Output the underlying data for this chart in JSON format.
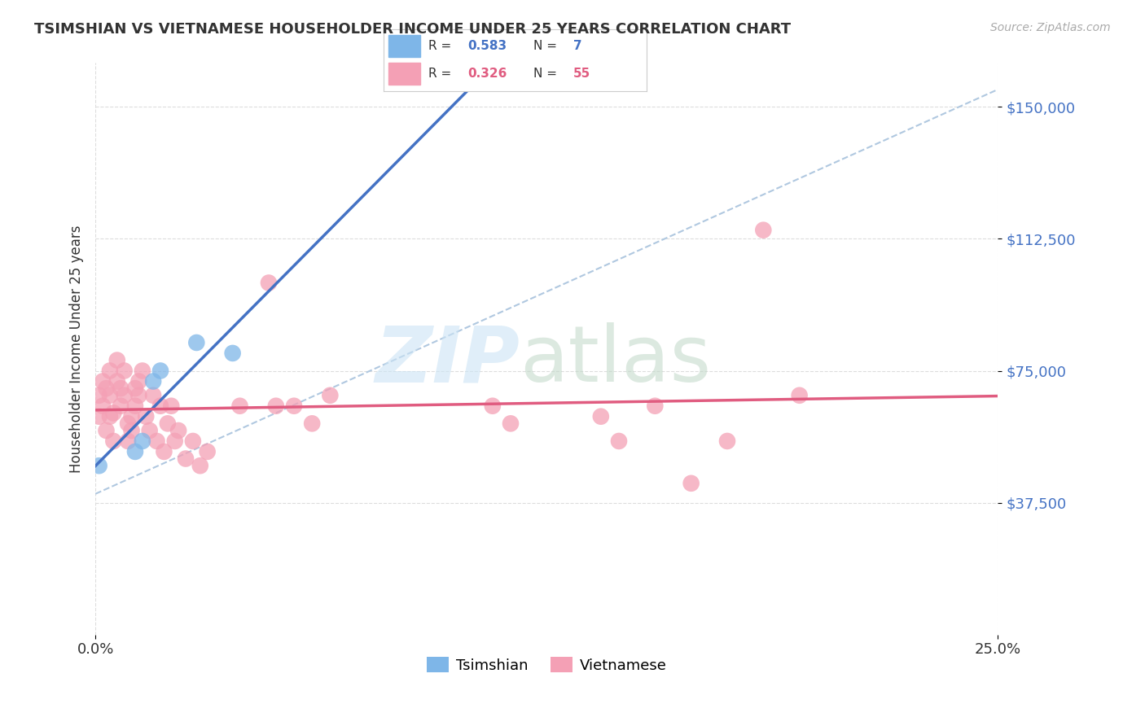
{
  "title": "TSIMSHIAN VS VIETNAMESE HOUSEHOLDER INCOME UNDER 25 YEARS CORRELATION CHART",
  "source": "Source: ZipAtlas.com",
  "ylabel": "Householder Income Under 25 years",
  "ytick_labels": [
    "$37,500",
    "$75,000",
    "$112,500",
    "$150,000"
  ],
  "ytick_values": [
    37500,
    75000,
    112500,
    150000
  ],
  "xmin": 0.0,
  "xmax": 0.25,
  "ymin": 0,
  "ymax": 162500,
  "legend_tsimshian_R": "0.583",
  "legend_tsimshian_N": "7",
  "legend_vietnamese_R": "0.326",
  "legend_vietnamese_N": "55",
  "tsimshian_color": "#7eb6e8",
  "vietnamese_color": "#f4a0b5",
  "tsimshian_line_color": "#4472c4",
  "vietnamese_line_color": "#e05c80",
  "dashed_line_color": "#b0c8e0",
  "background_color": "#ffffff",
  "tsimshian_x": [
    0.001,
    0.011,
    0.013,
    0.016,
    0.018,
    0.028,
    0.038
  ],
  "tsimshian_y": [
    48000,
    52000,
    55000,
    72000,
    75000,
    83000,
    80000
  ],
  "vietnamese_x": [
    0.001,
    0.001,
    0.002,
    0.002,
    0.003,
    0.003,
    0.004,
    0.004,
    0.004,
    0.005,
    0.005,
    0.006,
    0.006,
    0.007,
    0.007,
    0.008,
    0.008,
    0.009,
    0.009,
    0.01,
    0.01,
    0.011,
    0.011,
    0.012,
    0.012,
    0.013,
    0.014,
    0.015,
    0.016,
    0.017,
    0.018,
    0.019,
    0.02,
    0.021,
    0.022,
    0.023,
    0.025,
    0.027,
    0.029,
    0.031,
    0.04,
    0.048,
    0.05,
    0.055,
    0.06,
    0.065,
    0.11,
    0.115,
    0.14,
    0.145,
    0.155,
    0.165,
    0.175,
    0.185,
    0.195
  ],
  "vietnamese_y": [
    62000,
    68000,
    72000,
    65000,
    58000,
    70000,
    75000,
    62000,
    68000,
    55000,
    63000,
    72000,
    78000,
    65000,
    70000,
    75000,
    68000,
    60000,
    55000,
    62000,
    58000,
    70000,
    65000,
    68000,
    72000,
    75000,
    62000,
    58000,
    68000,
    55000,
    65000,
    52000,
    60000,
    65000,
    55000,
    58000,
    50000,
    55000,
    48000,
    52000,
    65000,
    100000,
    65000,
    65000,
    60000,
    68000,
    65000,
    60000,
    62000,
    55000,
    65000,
    43000,
    55000,
    115000,
    68000
  ]
}
